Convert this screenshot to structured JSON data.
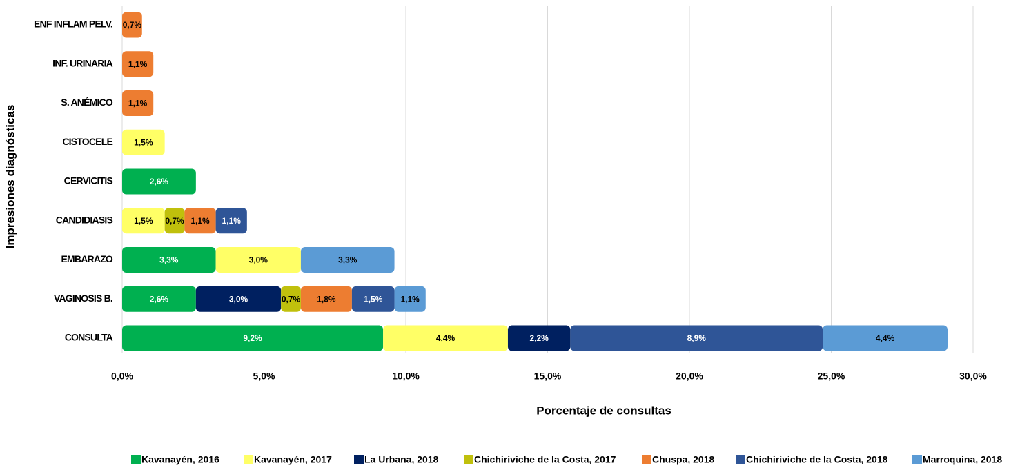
{
  "chart_data": {
    "type": "stacked-barh",
    "y_label": "Impresiones diagnósticas",
    "x_label": "Porcentaje de consultas",
    "categories": [
      "ENF INFLAM PELV.",
      "INF. URINARIA",
      "S. ANÉMICO",
      "CISTOCELE",
      "CERVICITIS",
      "CANDIDIASIS",
      "EMBARAZO",
      "VAGINOSIS B.",
      "CONSULTA"
    ],
    "series": [
      {
        "name": "Kavanayén, 2016",
        "color": "#00b050",
        "values": [
          null,
          null,
          null,
          null,
          2.6,
          null,
          3.3,
          2.6,
          9.2
        ],
        "value_labels": [
          null,
          null,
          null,
          null,
          "2,6%",
          null,
          "3,3%",
          "2,6%",
          "9,2%"
        ]
      },
      {
        "name": "Kavanayén, 2017",
        "color": "#ffff66",
        "values": [
          null,
          null,
          null,
          1.5,
          null,
          1.5,
          3.0,
          null,
          4.4
        ],
        "value_labels": [
          null,
          null,
          null,
          "1,5%",
          null,
          "1,5%",
          "3,0%",
          null,
          "4,4%"
        ]
      },
      {
        "name": "La Urbana, 2018",
        "color": "#002060",
        "values": [
          null,
          null,
          null,
          null,
          null,
          null,
          null,
          3.0,
          2.2
        ],
        "value_labels": [
          null,
          null,
          null,
          null,
          null,
          null,
          null,
          "3,0%",
          "2,2%"
        ]
      },
      {
        "name": "Chichiriviche de la Costa, 2017",
        "color": "#c0c00c",
        "values": [
          null,
          null,
          null,
          null,
          null,
          0.7,
          null,
          0.7,
          null
        ],
        "value_labels": [
          null,
          null,
          null,
          null,
          null,
          "0,7%",
          null,
          "0,7%",
          null
        ]
      },
      {
        "name": "Chuspa, 2018",
        "color": "#ed7d31",
        "values": [
          0.7,
          1.1,
          1.1,
          null,
          null,
          1.1,
          null,
          1.8,
          null
        ],
        "value_labels": [
          "0,7%",
          "1,1%",
          "1,1%",
          null,
          null,
          "1,1%",
          null,
          "1,8%",
          null
        ]
      },
      {
        "name": "Chichiriviche de la Costa, 2018",
        "color": "#2f5597",
        "values": [
          null,
          null,
          null,
          null,
          null,
          1.1,
          null,
          1.5,
          8.9
        ],
        "value_labels": [
          null,
          null,
          null,
          null,
          null,
          "1,1%",
          null,
          "1,5%",
          "8,9%"
        ]
      },
      {
        "name": "Marroquina, 2018",
        "color": "#5b9bd5",
        "values": [
          null,
          null,
          null,
          null,
          null,
          null,
          3.3,
          1.1,
          4.4
        ],
        "value_labels": [
          null,
          null,
          null,
          null,
          null,
          null,
          "3,3%",
          "1,1%",
          "4,4%"
        ]
      }
    ],
    "xlim": [
      0,
      30
    ],
    "xticks": [
      {
        "value": 0,
        "label": "0,0%"
      },
      {
        "value": 5,
        "label": "5,0%"
      },
      {
        "value": 10,
        "label": "10,0%"
      },
      {
        "value": 15,
        "label": "15,0%"
      },
      {
        "value": 20,
        "label": "20,0%"
      },
      {
        "value": 25,
        "label": "25,0%"
      },
      {
        "value": 30,
        "label": "30,0%"
      }
    ],
    "grid": true,
    "legend": "bottom"
  }
}
